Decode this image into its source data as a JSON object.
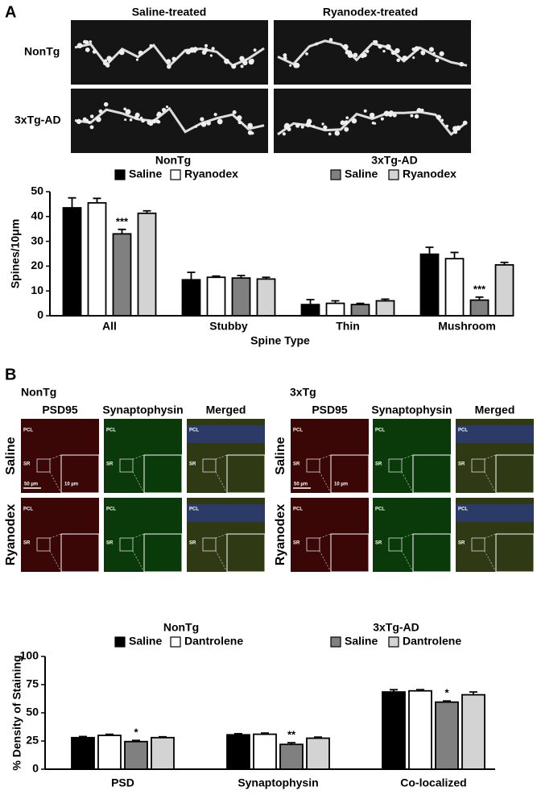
{
  "panel_a": {
    "label": "A",
    "columns": [
      "Saline-treated",
      "Ryanodex-treated"
    ],
    "rows": [
      "NonTg",
      "3xTg-AD"
    ]
  },
  "panel_b": {
    "label": "B",
    "groups": [
      {
        "title": "NonTg",
        "columns": [
          "PSD95",
          "Synaptophysin",
          "Merged"
        ]
      },
      {
        "title": "3xTg",
        "columns": [
          "PSD95",
          "Synaptophysin",
          "Merged"
        ]
      }
    ],
    "rows": [
      "Saline",
      "Ryanodex"
    ],
    "markers": {
      "pcl": "PCL",
      "sr": "SR"
    },
    "scale_bars": [
      "50 µm",
      "10 µm"
    ]
  },
  "chart_data": [
    {
      "type": "bar",
      "ylabel": "Spines/10μm",
      "xlabel": "Spine Type",
      "categories": [
        "All",
        "Stubby",
        "Thin",
        "Mushroom"
      ],
      "ylim": [
        0,
        50
      ],
      "yticks": [
        0,
        10,
        20,
        30,
        40,
        50
      ],
      "legend_groups": [
        {
          "title": "NonTg",
          "series": [
            {
              "name": "Saline",
              "color": "#000000",
              "values": [
                43.5,
                14.5,
                4.5,
                24.8
              ],
              "errors": [
                4,
                3,
                2,
                2.8
              ],
              "annotations": [
                null,
                null,
                null,
                null
              ]
            },
            {
              "name": "Ryanodex",
              "color": "#ffffff",
              "values": [
                45.5,
                15.5,
                5,
                23
              ],
              "errors": [
                1.8,
                0.5,
                1,
                2.5
              ],
              "annotations": [
                null,
                null,
                null,
                null
              ]
            }
          ]
        },
        {
          "title": "3xTg-AD",
          "series": [
            {
              "name": "Saline",
              "color": "#808080",
              "values": [
                33,
                15.2,
                4.5,
                6.3
              ],
              "errors": [
                1.8,
                1,
                0.5,
                1.2
              ],
              "annotations": [
                "***",
                null,
                null,
                "***"
              ]
            },
            {
              "name": "Ryanodex",
              "color": "#d3d3d3",
              "values": [
                41.3,
                14.8,
                6,
                20.5
              ],
              "errors": [
                1,
                0.7,
                0.7,
                1
              ],
              "annotations": [
                null,
                null,
                null,
                null
              ]
            }
          ]
        }
      ]
    },
    {
      "type": "bar",
      "ylabel": "% Density of Staining",
      "categories": [
        "PSD",
        "Synaptophysin",
        "Co-localized"
      ],
      "ylim": [
        0,
        100
      ],
      "yticks": [
        0,
        25,
        50,
        75,
        100
      ],
      "legend_groups": [
        {
          "title": "NonTg",
          "series": [
            {
              "name": "Saline",
              "color": "#000000",
              "values": [
                28,
                30.5,
                68.5
              ],
              "errors": [
                1,
                1,
                2
              ],
              "annotations": [
                null,
                null,
                null
              ]
            },
            {
              "name": "Dantrolene",
              "color": "#ffffff",
              "values": [
                30,
                31,
                69.5
              ],
              "errors": [
                1,
                1,
                1
              ],
              "annotations": [
                null,
                null,
                null
              ]
            }
          ]
        },
        {
          "title": "3xTg-AD",
          "series": [
            {
              "name": "Saline",
              "color": "#808080",
              "values": [
                24.5,
                22,
                59.5
              ],
              "errors": [
                1,
                1.5,
                1
              ],
              "annotations": [
                "*",
                "**",
                "*"
              ]
            },
            {
              "name": "Dantrolene",
              "color": "#d3d3d3",
              "values": [
                28,
                27.5,
                66
              ],
              "errors": [
                0.7,
                1,
                2.5
              ],
              "annotations": [
                null,
                null,
                null
              ]
            }
          ]
        }
      ]
    }
  ]
}
